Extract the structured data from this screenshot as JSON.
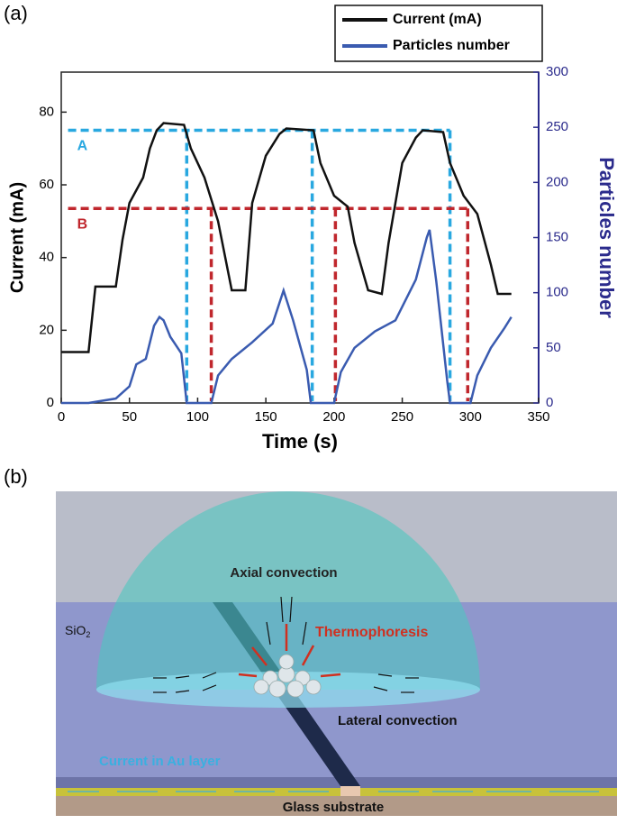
{
  "panel_labels": [
    "(a)",
    "(b)"
  ],
  "chart_data": {
    "type": "line",
    "x_label": "Time (s)",
    "y_label": "Current (mA)",
    "y2_label": "Particles number",
    "xlim": [
      0,
      350
    ],
    "xticks": [
      0,
      50,
      100,
      150,
      200,
      250,
      300,
      350
    ],
    "ylim": [
      0,
      91
    ],
    "yticks": [
      0,
      20,
      40,
      60,
      80
    ],
    "y2lim": [
      0,
      300
    ],
    "y2ticks": [
      0,
      50,
      100,
      150,
      200,
      250,
      300
    ],
    "y2_color": "#2b2b8c",
    "legend": "top-right",
    "series": [
      {
        "name": "Current (mA)",
        "color": "#111111",
        "x": [
          0,
          20,
          25,
          40,
          45,
          50,
          60,
          65,
          70,
          75,
          90,
          95,
          105,
          115,
          125,
          135,
          140,
          150,
          160,
          165,
          185,
          190,
          200,
          210,
          215,
          225,
          235,
          240,
          250,
          260,
          265,
          280,
          285,
          295,
          305,
          315,
          320,
          330
        ],
        "values": [
          14,
          14,
          32,
          32,
          45,
          55,
          62,
          70,
          75,
          77,
          76.5,
          70,
          62,
          50,
          31,
          31,
          55,
          68,
          74,
          75.5,
          75,
          66,
          57,
          54,
          44,
          31,
          30,
          44,
          66,
          73,
          75,
          74.5,
          66,
          57,
          52,
          38,
          30,
          30
        ]
      },
      {
        "name": "Particles number",
        "color": "#3a5bb0",
        "axis": "y2",
        "x": [
          0,
          20,
          40,
          50,
          55,
          62,
          68,
          72,
          75,
          80,
          88,
          92,
          110,
          115,
          125,
          140,
          155,
          163,
          170,
          180,
          183,
          200,
          205,
          215,
          230,
          245,
          260,
          268,
          270,
          275,
          283,
          285,
          300,
          305,
          315,
          325,
          330
        ],
        "values": [
          0,
          0,
          4,
          15,
          35,
          40,
          70,
          78,
          75,
          60,
          45,
          0,
          0,
          25,
          40,
          55,
          72,
          102,
          75,
          30,
          0,
          0,
          28,
          50,
          65,
          75,
          112,
          150,
          157,
          110,
          20,
          0,
          0,
          25,
          50,
          68,
          78
        ]
      }
    ],
    "annotations": [
      {
        "label": "A",
        "value": 75,
        "color": "#29a8e0",
        "x_start": 5,
        "drops": [
          92,
          184,
          285
        ]
      },
      {
        "label": "B",
        "value": 53.5,
        "color": "#c0272d",
        "x_start": 5,
        "drops": [
          110,
          201,
          298
        ]
      }
    ]
  },
  "diagram": {
    "axial": "Axial convection",
    "sio2": {
      "text": "SiO",
      "subscript": "2"
    },
    "thermo": "Thermophoresis",
    "lateral": "Lateral convection",
    "current": "Current in Au layer",
    "glass": "Glass substrate"
  }
}
